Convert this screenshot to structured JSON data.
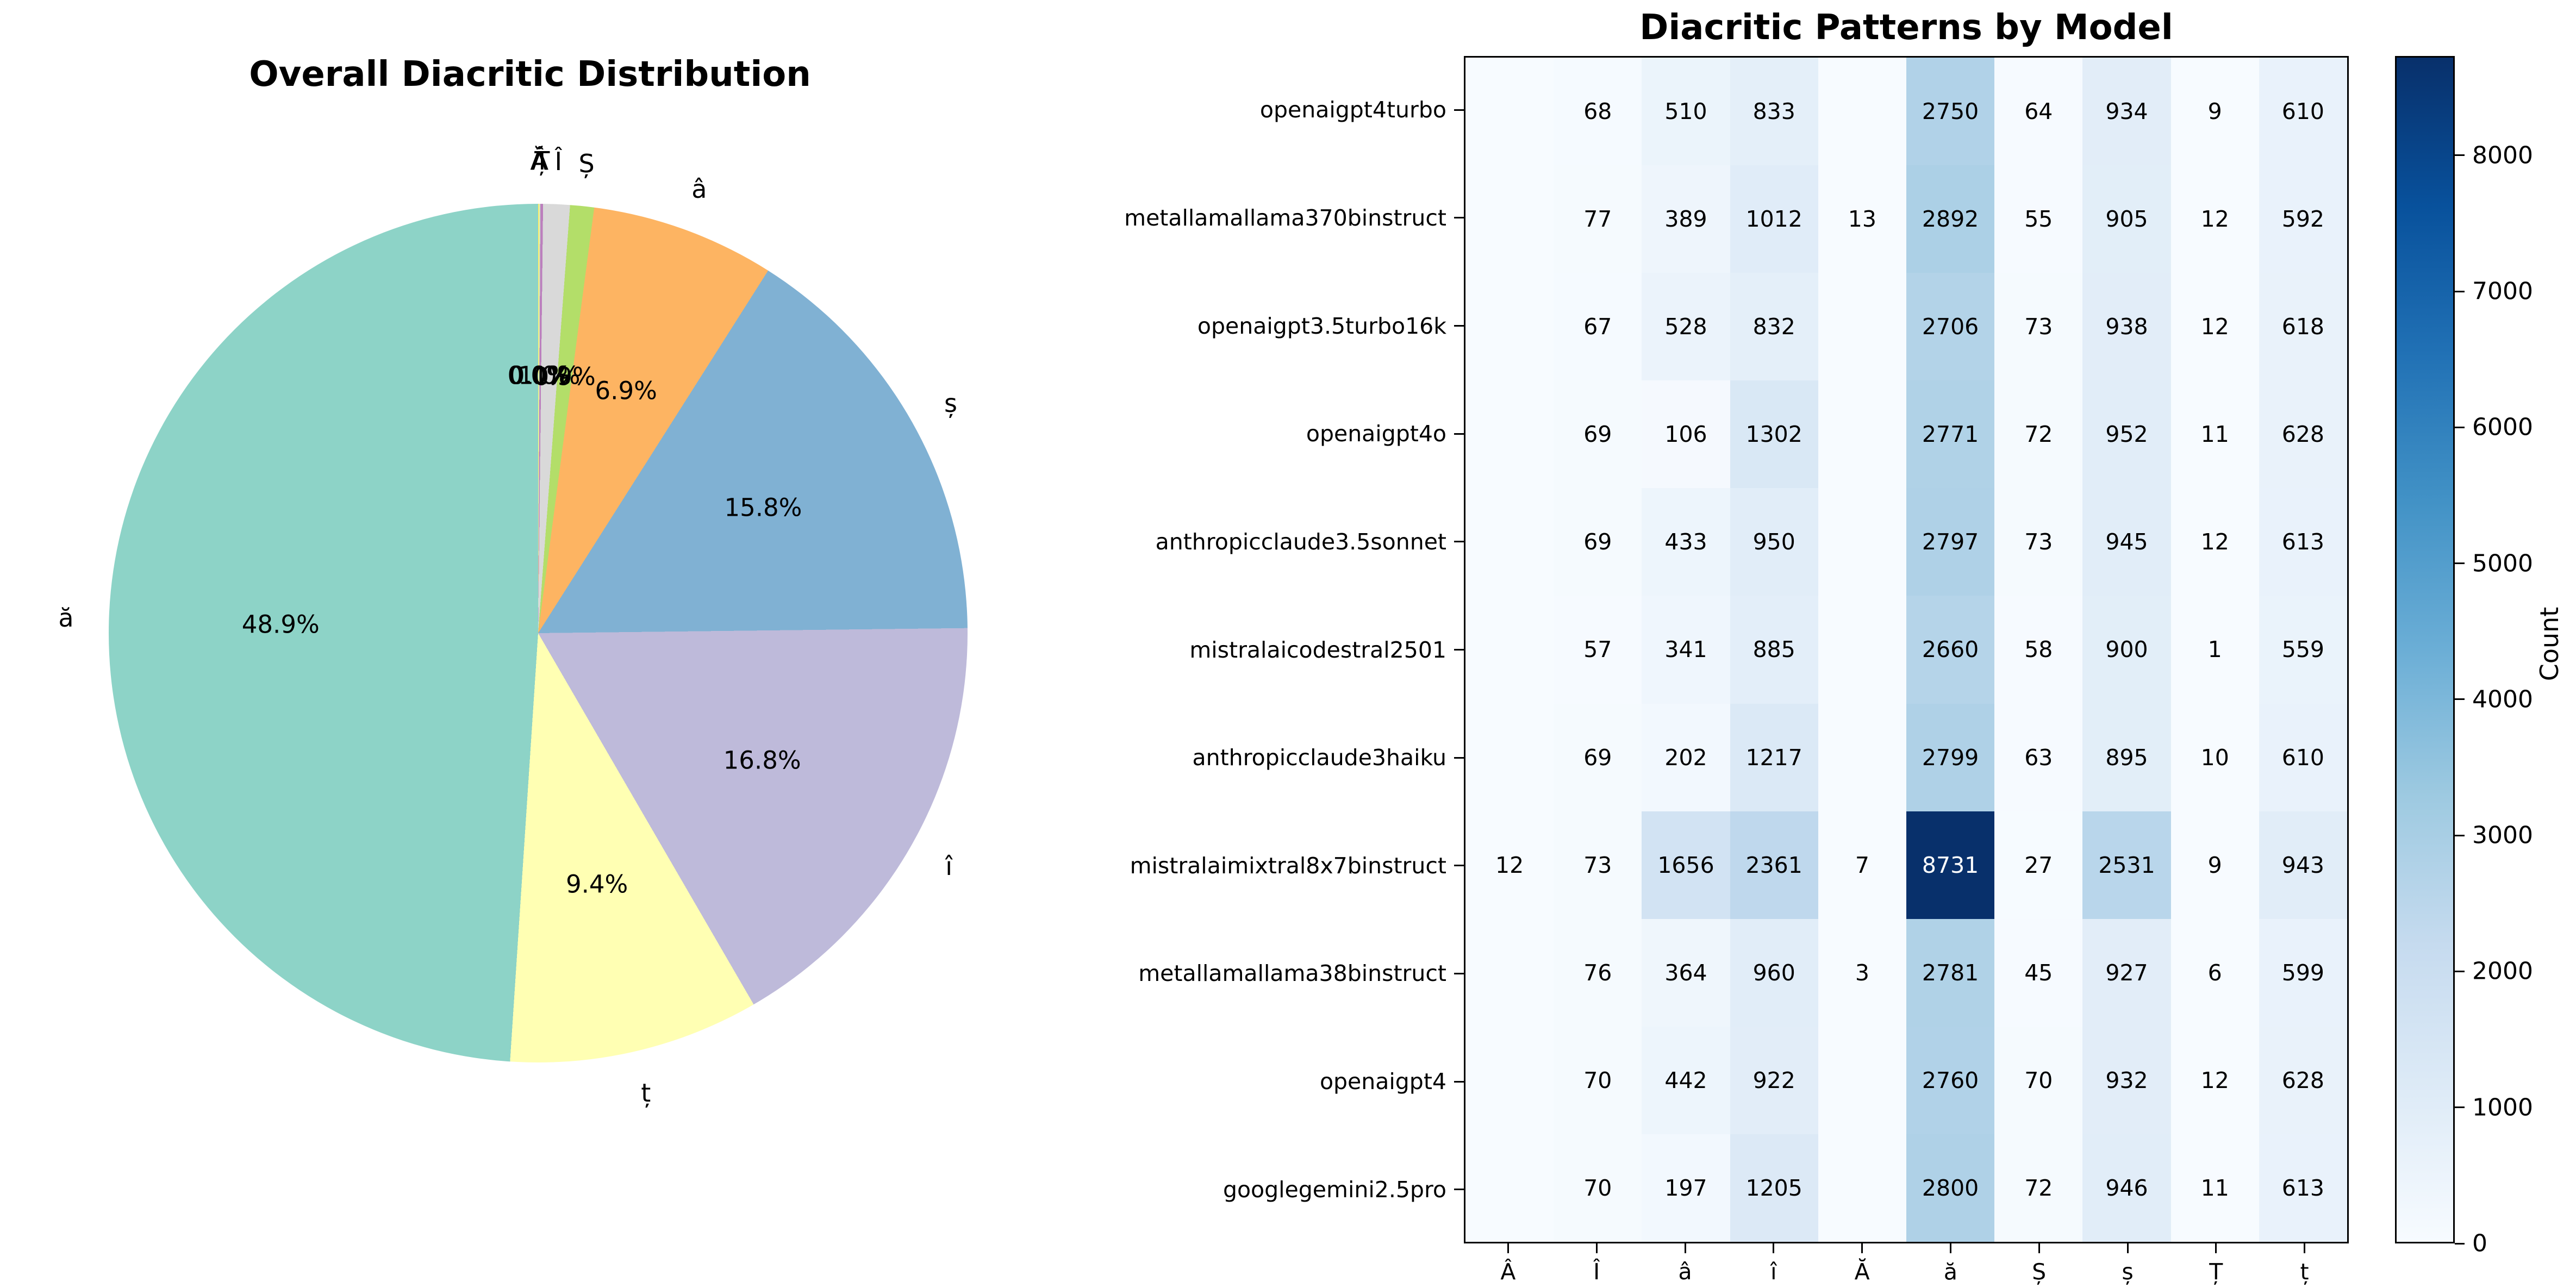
{
  "chart_data": [
    {
      "type": "pie",
      "title": "Overall Diacritic Distribution",
      "note": "slices listed clockwise from 12 o'clock",
      "slices": [
        {
          "label": "Ă",
          "pct": 0.0,
          "pct_label": "0.0%",
          "color": "#ffed6f"
        },
        {
          "label": "Â",
          "pct": 0.0,
          "pct_label": "0.0%",
          "color": "#ccebc5"
        },
        {
          "label": "Ț",
          "pct": 0.1,
          "pct_label": "0.1%",
          "color": "#bc80bd"
        },
        {
          "label": "Î",
          "pct": 1.0,
          "pct_label": "1.0%",
          "color": "#d9d9d9"
        },
        {
          "label": "Ș",
          "pct": 0.9,
          "pct_label": "0.9%",
          "color": "#b3de69"
        },
        {
          "label": "â",
          "pct": 6.9,
          "pct_label": "6.9%",
          "color": "#fdb462"
        },
        {
          "label": "ș",
          "pct": 15.8,
          "pct_label": "15.8%",
          "color": "#80b1d3"
        },
        {
          "label": "î",
          "pct": 16.8,
          "pct_label": "16.8%",
          "color": "#bebada"
        },
        {
          "label": "ț",
          "pct": 9.4,
          "pct_label": "9.4%",
          "color": "#ffffb3"
        },
        {
          "label": "ă",
          "pct": 48.9,
          "pct_label": "48.9%",
          "color": "#8dd3c7"
        }
      ]
    },
    {
      "type": "heatmap",
      "title": "Diacritic Patterns by Model",
      "x_labels": [
        "Â",
        "Î",
        "â",
        "î",
        "Ă",
        "ă",
        "Ș",
        "ș",
        "Ț",
        "ț"
      ],
      "y_labels": [
        "openaigpt4turbo",
        "metallamallama370binstruct",
        "openaigpt3.5turbo16k",
        "openaigpt4o",
        "anthropicclaude3.5sonnet",
        "mistralaicodestral2501",
        "anthropicclaude3haiku",
        "mistralaimixtral8x7binstruct",
        "metallamallama38binstruct",
        "openaigpt4",
        "googlegemini2.5pro"
      ],
      "values": [
        [
          null,
          68,
          510,
          833,
          null,
          2750,
          64,
          934,
          9,
          610
        ],
        [
          null,
          77,
          389,
          1012,
          13,
          2892,
          55,
          905,
          12,
          592
        ],
        [
          null,
          67,
          528,
          832,
          null,
          2706,
          73,
          938,
          12,
          618
        ],
        [
          null,
          69,
          106,
          1302,
          null,
          2771,
          72,
          952,
          11,
          628
        ],
        [
          null,
          69,
          433,
          950,
          null,
          2797,
          73,
          945,
          12,
          613
        ],
        [
          null,
          57,
          341,
          885,
          null,
          2660,
          58,
          900,
          1,
          559
        ],
        [
          null,
          69,
          202,
          1217,
          null,
          2799,
          63,
          895,
          10,
          610
        ],
        [
          12,
          73,
          1656,
          2361,
          7,
          8731,
          27,
          2531,
          9,
          943
        ],
        [
          null,
          76,
          364,
          960,
          3,
          2781,
          45,
          927,
          6,
          599
        ],
        [
          null,
          70,
          442,
          922,
          null,
          2760,
          70,
          932,
          12,
          628
        ],
        [
          null,
          70,
          197,
          1205,
          null,
          2800,
          72,
          946,
          11,
          613
        ]
      ],
      "vmin": 0,
      "vmax": 8731,
      "colormap": "Blues",
      "grid": "off",
      "colorbar": {
        "label": "Count",
        "ticks": [
          "0",
          "1000",
          "2000",
          "3000",
          "4000",
          "5000",
          "6000",
          "7000",
          "8000"
        ],
        "top_color": "#08306b",
        "bottom_color": "#f7fbff"
      }
    }
  ]
}
